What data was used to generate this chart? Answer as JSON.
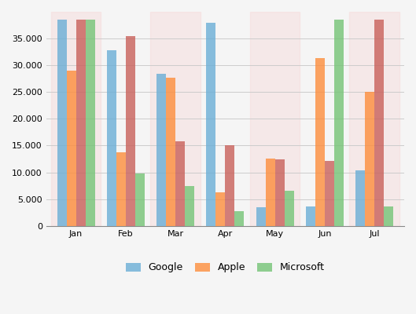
{
  "months": [
    "Jan",
    "Feb",
    "Mar",
    "Apr",
    "May",
    "Jun",
    "Jul"
  ],
  "google": [
    38500,
    32800,
    28400,
    38000,
    3500,
    3600,
    10400
  ],
  "apple": [
    29000,
    13700,
    27700,
    6200,
    12600,
    31300,
    25000
  ],
  "red_series": [
    38500,
    35500,
    15800,
    15100,
    12400,
    12200,
    38500
  ],
  "microsoft": [
    38500,
    9800,
    7500,
    2800,
    6500,
    38500,
    3600
  ],
  "colors": {
    "google": "#6BAED6",
    "apple": "#FD8D3C",
    "microsoft": "#74C476",
    "red": "#C9605A"
  },
  "alpha": 0.8,
  "ylim": [
    0,
    40000
  ],
  "yticks": [
    0,
    5000,
    10000,
    15000,
    20000,
    25000,
    30000,
    35000
  ],
  "background_color": "#F5F5F5",
  "alt_col_color": "#F5DCDC",
  "grid_color": "#CCCCCC",
  "legend_labels": [
    "Google",
    "Apple",
    "Microsoft"
  ],
  "bar_width": 0.19,
  "figsize": [
    5.29,
    4.0
  ],
  "dpi": 100
}
